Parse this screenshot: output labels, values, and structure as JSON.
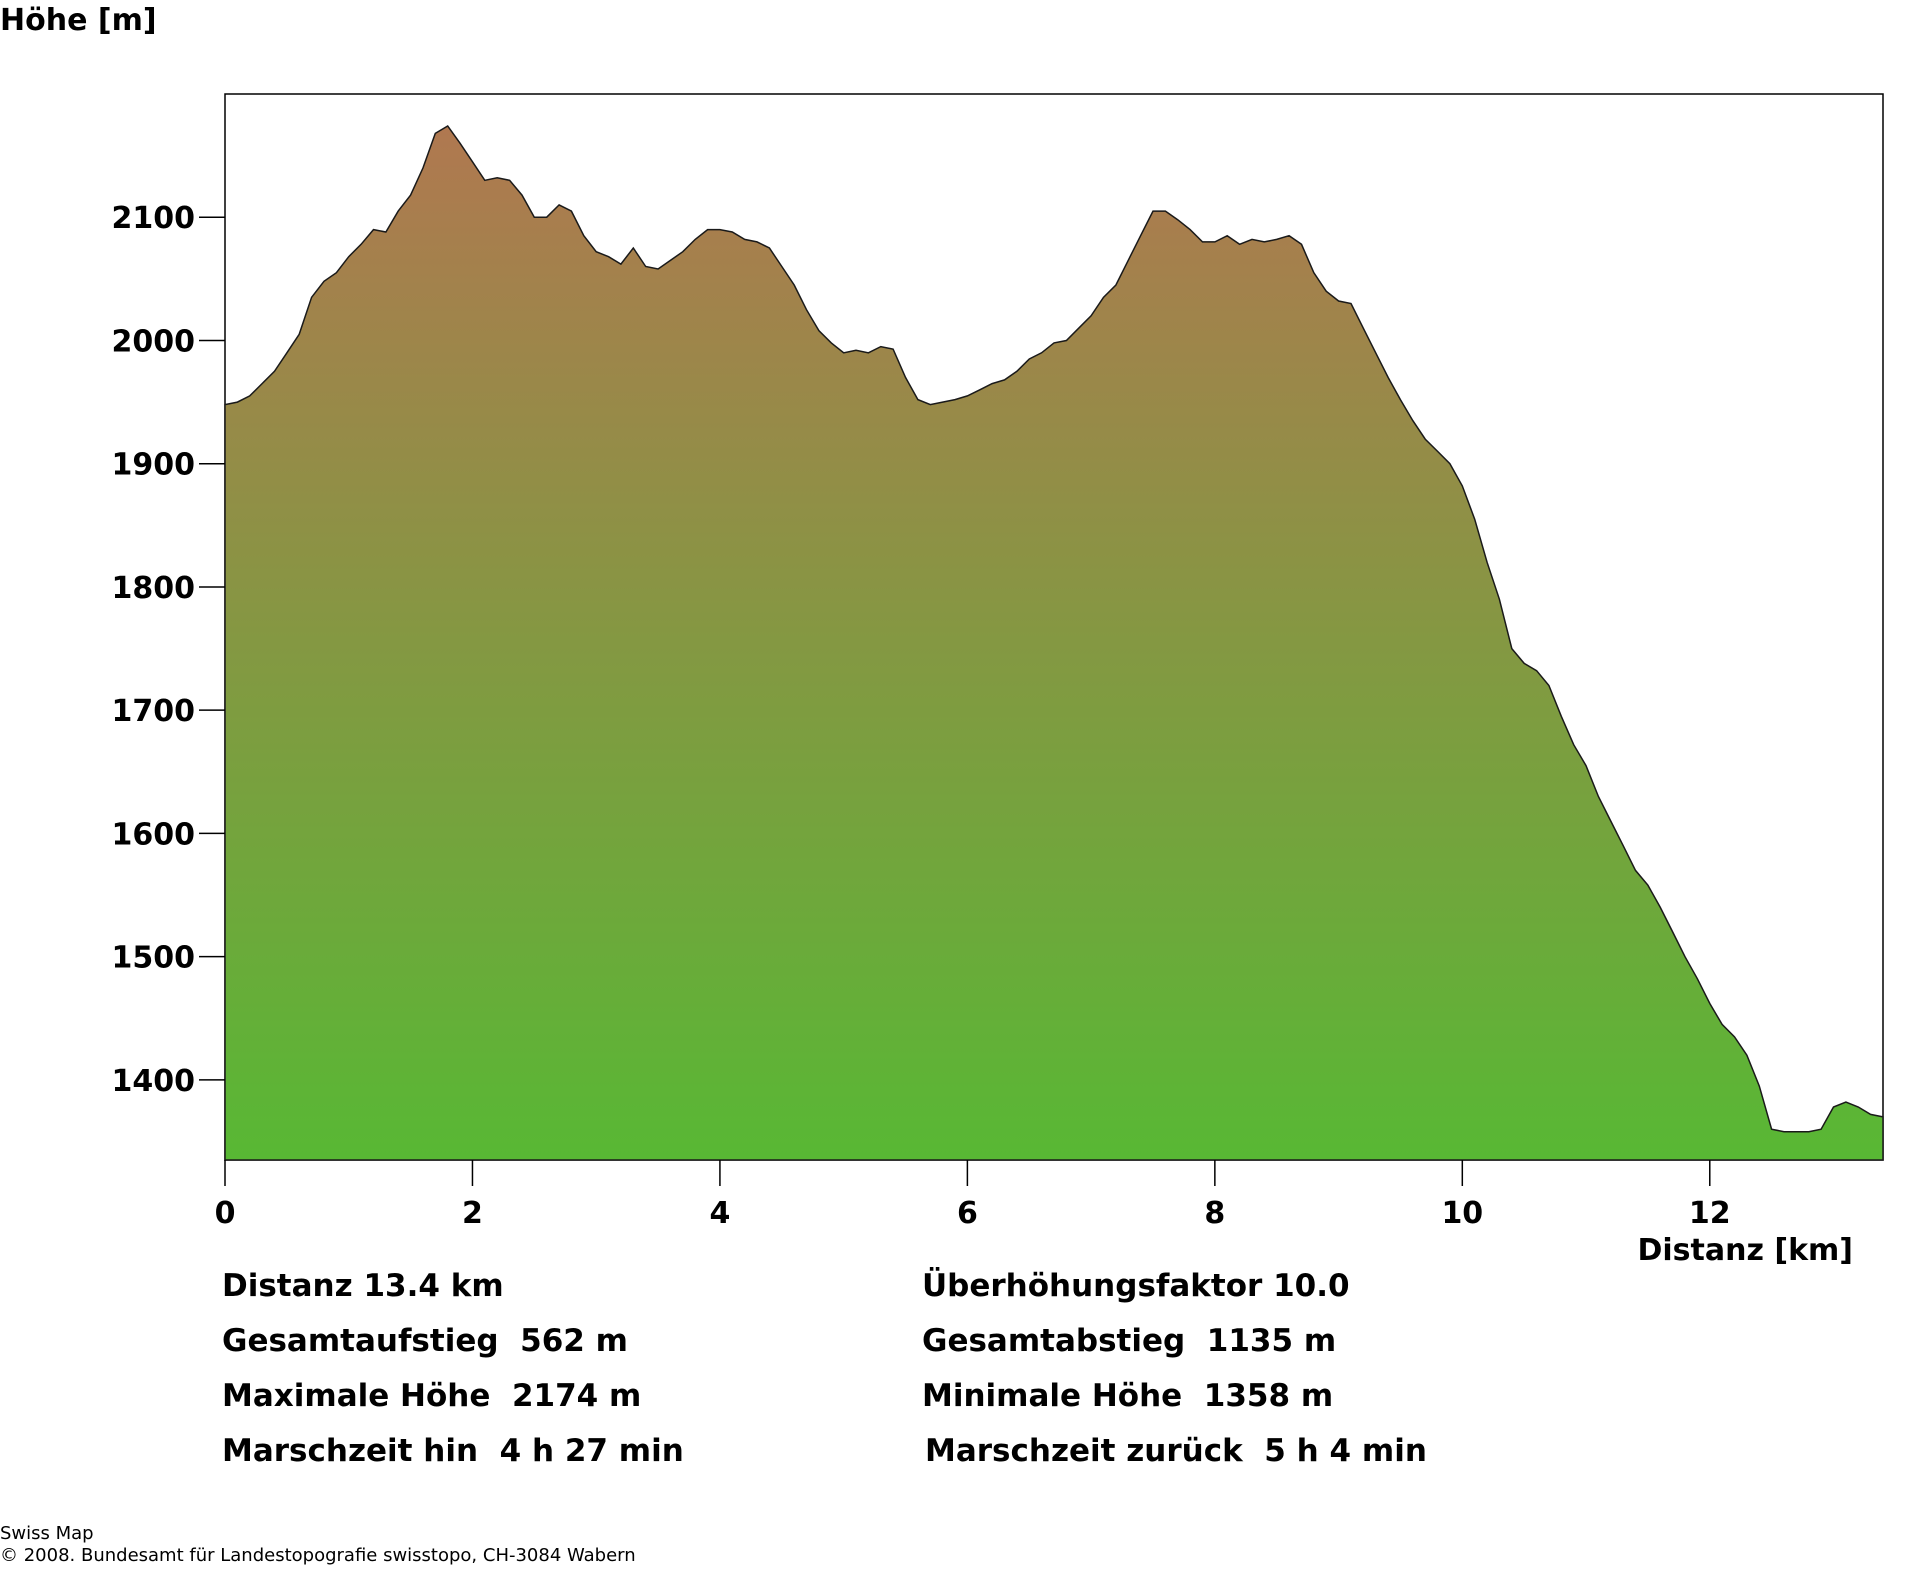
{
  "chart_data": {
    "type": "area",
    "title": "",
    "xlabel": "Distanz [km]",
    "ylabel": "Höhe [m]",
    "xlim": [
      0,
      13.4
    ],
    "ylim": [
      1335,
      2200
    ],
    "xticks": [
      0,
      2,
      4,
      6,
      8,
      10,
      12
    ],
    "yticks": [
      1400,
      1500,
      1600,
      1700,
      1800,
      1900,
      2000,
      2100
    ],
    "grid": false,
    "legend": "none",
    "colors": {
      "top": "#b07850",
      "bottom": "#58b834",
      "outline": "#1a1a1a"
    },
    "x": [
      0,
      0.1,
      0.2,
      0.3,
      0.4,
      0.5,
      0.6,
      0.7,
      0.8,
      0.9,
      1.0,
      1.1,
      1.2,
      1.3,
      1.4,
      1.5,
      1.6,
      1.7,
      1.8,
      1.9,
      2.0,
      2.1,
      2.2,
      2.3,
      2.4,
      2.5,
      2.6,
      2.7,
      2.8,
      2.9,
      3.0,
      3.1,
      3.2,
      3.3,
      3.4,
      3.5,
      3.6,
      3.7,
      3.8,
      3.9,
      4.0,
      4.1,
      4.2,
      4.3,
      4.4,
      4.5,
      4.6,
      4.7,
      4.8,
      4.9,
      5.0,
      5.1,
      5.2,
      5.3,
      5.4,
      5.5,
      5.6,
      5.7,
      5.8,
      5.9,
      6.0,
      6.1,
      6.2,
      6.3,
      6.4,
      6.5,
      6.6,
      6.7,
      6.8,
      6.9,
      7.0,
      7.1,
      7.2,
      7.3,
      7.4,
      7.5,
      7.6,
      7.7,
      7.8,
      7.9,
      8.0,
      8.1,
      8.2,
      8.3,
      8.4,
      8.5,
      8.6,
      8.7,
      8.8,
      8.9,
      9.0,
      9.1,
      9.2,
      9.3,
      9.4,
      9.5,
      9.6,
      9.7,
      9.8,
      9.9,
      10.0,
      10.1,
      10.2,
      10.3,
      10.4,
      10.5,
      10.6,
      10.7,
      10.8,
      10.9,
      11.0,
      11.1,
      11.2,
      11.3,
      11.4,
      11.5,
      11.6,
      11.7,
      11.8,
      11.9,
      12.0,
      12.1,
      12.2,
      12.3,
      12.4,
      12.5,
      12.6,
      12.7,
      12.8,
      12.9,
      13.0,
      13.1,
      13.2,
      13.3,
      13.4
    ],
    "y": [
      1948,
      1950,
      1955,
      1965,
      1975,
      1990,
      2005,
      2035,
      2048,
      2055,
      2068,
      2078,
      2090,
      2088,
      2105,
      2118,
      2140,
      2168,
      2174,
      2160,
      2145,
      2130,
      2132,
      2130,
      2118,
      2100,
      2100,
      2110,
      2105,
      2085,
      2072,
      2068,
      2062,
      2075,
      2060,
      2058,
      2065,
      2072,
      2082,
      2090,
      2090,
      2088,
      2082,
      2080,
      2075,
      2060,
      2045,
      2025,
      2008,
      1998,
      1990,
      1992,
      1990,
      1995,
      1993,
      1970,
      1952,
      1948,
      1950,
      1952,
      1955,
      1960,
      1965,
      1968,
      1975,
      1985,
      1990,
      1998,
      2000,
      2010,
      2020,
      2035,
      2045,
      2065,
      2085,
      2105,
      2105,
      2098,
      2090,
      2080,
      2080,
      2085,
      2078,
      2082,
      2080,
      2082,
      2085,
      2078,
      2055,
      2040,
      2032,
      2030,
      2010,
      1990,
      1970,
      1952,
      1935,
      1920,
      1910,
      1900,
      1882,
      1855,
      1820,
      1790,
      1750,
      1738,
      1732,
      1720,
      1695,
      1672,
      1655,
      1630,
      1610,
      1590,
      1570,
      1558,
      1540,
      1520,
      1500,
      1482,
      1462,
      1445,
      1435,
      1420,
      1395,
      1360,
      1358,
      1358,
      1358,
      1360,
      1378,
      1382,
      1378,
      1372,
      1370
    ]
  },
  "stats_left": [
    "Distanz 13.4 km",
    "Gesamtaufstieg  562 m",
    "Maximale Höhe  2174 m",
    "Marschzeit hin  4 h 27 min"
  ],
  "stats_right": [
    "Überhöhungsfaktor 10.0",
    "Gesamtabstieg  1135 m",
    "Minimale Höhe  1358 m",
    "Marschzeit zurück  5 h 4 min"
  ],
  "footer": {
    "line1": "Swiss Map",
    "line2": "© 2008. Bundesamt für Landestopografie swisstopo, CH-3084 Wabern"
  }
}
